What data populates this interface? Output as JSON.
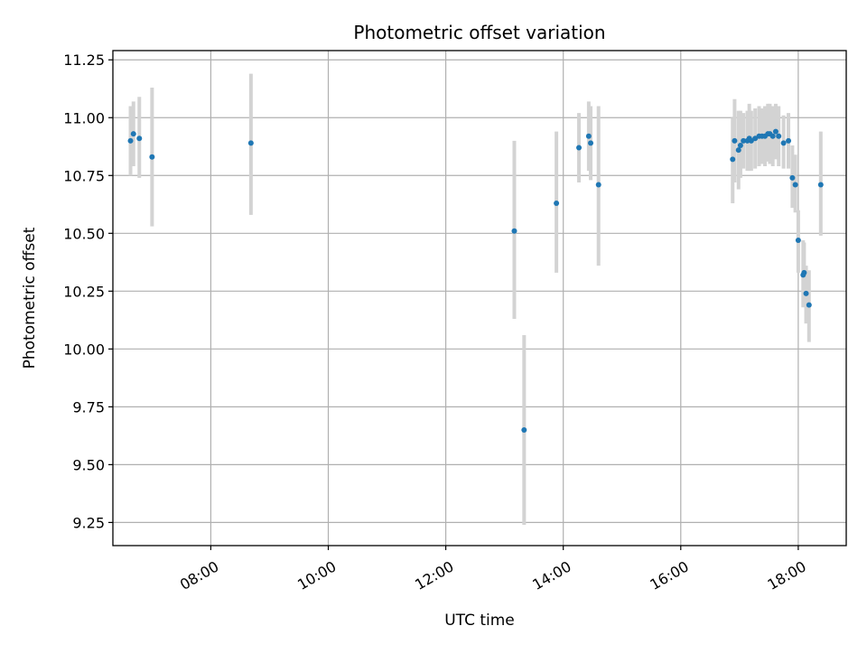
{
  "chart_data": {
    "type": "scatter",
    "title": "Photometric offset variation",
    "xlabel": "UTC time",
    "ylabel": "Photometric offset",
    "xlim": [
      "06:20",
      "18:49"
    ],
    "ylim": [
      9.15,
      11.29
    ],
    "x_ticks": [
      "08:00",
      "10:00",
      "12:00",
      "14:00",
      "16:00",
      "18:00"
    ],
    "y_ticks": [
      9.25,
      9.5,
      9.75,
      10.0,
      10.25,
      10.5,
      10.75,
      11.0,
      11.25
    ],
    "y_tick_labels": [
      "9.25",
      "9.50",
      "9.75",
      "10.00",
      "10.25",
      "10.50",
      "10.75",
      "11.00",
      "11.25"
    ],
    "grid": true,
    "point_color": "#1f77b4",
    "error_color": "#d3d3d3",
    "points": [
      {
        "t": "06:38",
        "y": 10.9,
        "lo": 10.75,
        "hi": 11.05
      },
      {
        "t": "06:41",
        "y": 10.93,
        "lo": 10.79,
        "hi": 11.07
      },
      {
        "t": "06:47",
        "y": 10.91,
        "lo": 10.74,
        "hi": 11.09
      },
      {
        "t": "07:00",
        "y": 10.83,
        "lo": 10.53,
        "hi": 11.13
      },
      {
        "t": "08:41",
        "y": 10.89,
        "lo": 10.58,
        "hi": 11.19
      },
      {
        "t": "13:10",
        "y": 10.51,
        "lo": 10.13,
        "hi": 10.9
      },
      {
        "t": "13:20",
        "y": 9.65,
        "lo": 9.24,
        "hi": 10.06
      },
      {
        "t": "13:53",
        "y": 10.63,
        "lo": 10.33,
        "hi": 10.94
      },
      {
        "t": "14:16",
        "y": 10.87,
        "lo": 10.72,
        "hi": 11.02
      },
      {
        "t": "14:26",
        "y": 10.92,
        "lo": 10.77,
        "hi": 11.07
      },
      {
        "t": "14:28",
        "y": 10.89,
        "lo": 10.73,
        "hi": 11.05
      },
      {
        "t": "14:36",
        "y": 10.71,
        "lo": 10.36,
        "hi": 11.05
      },
      {
        "t": "16:53",
        "y": 10.82,
        "lo": 10.63,
        "hi": 11.0
      },
      {
        "t": "16:55",
        "y": 10.9,
        "lo": 10.72,
        "hi": 11.08
      },
      {
        "t": "16:59",
        "y": 10.86,
        "lo": 10.69,
        "hi": 11.03
      },
      {
        "t": "17:01",
        "y": 10.88,
        "lo": 10.74,
        "hi": 11.03
      },
      {
        "t": "17:04",
        "y": 10.9,
        "lo": 10.78,
        "hi": 11.02
      },
      {
        "t": "17:08",
        "y": 10.9,
        "lo": 10.77,
        "hi": 11.03
      },
      {
        "t": "17:10",
        "y": 10.91,
        "lo": 10.77,
        "hi": 11.06
      },
      {
        "t": "17:12",
        "y": 10.9,
        "lo": 10.77,
        "hi": 11.03
      },
      {
        "t": "17:16",
        "y": 10.91,
        "lo": 10.78,
        "hi": 11.04
      },
      {
        "t": "17:20",
        "y": 10.92,
        "lo": 10.79,
        "hi": 11.05
      },
      {
        "t": "17:23",
        "y": 10.92,
        "lo": 10.8,
        "hi": 11.04
      },
      {
        "t": "17:26",
        "y": 10.92,
        "lo": 10.79,
        "hi": 11.05
      },
      {
        "t": "17:29",
        "y": 10.93,
        "lo": 10.81,
        "hi": 11.06
      },
      {
        "t": "17:31",
        "y": 10.93,
        "lo": 10.8,
        "hi": 11.06
      },
      {
        "t": "17:34",
        "y": 10.92,
        "lo": 10.79,
        "hi": 11.05
      },
      {
        "t": "17:37",
        "y": 10.94,
        "lo": 10.82,
        "hi": 11.06
      },
      {
        "t": "17:40",
        "y": 10.92,
        "lo": 10.79,
        "hi": 11.05
      },
      {
        "t": "17:45",
        "y": 10.89,
        "lo": 10.78,
        "hi": 11.01
      },
      {
        "t": "17:50",
        "y": 10.9,
        "lo": 10.78,
        "hi": 11.02
      },
      {
        "t": "17:54",
        "y": 10.74,
        "lo": 10.61,
        "hi": 10.88
      },
      {
        "t": "17:57",
        "y": 10.71,
        "lo": 10.59,
        "hi": 10.84
      },
      {
        "t": "18:00",
        "y": 10.47,
        "lo": 10.33,
        "hi": 10.6
      },
      {
        "t": "18:05",
        "y": 10.32,
        "lo": 10.18,
        "hi": 10.47
      },
      {
        "t": "18:06",
        "y": 10.33,
        "lo": 10.2,
        "hi": 10.46
      },
      {
        "t": "18:08",
        "y": 10.24,
        "lo": 10.11,
        "hi": 10.36
      },
      {
        "t": "18:11",
        "y": 10.19,
        "lo": 10.03,
        "hi": 10.34
      },
      {
        "t": "18:23",
        "y": 10.71,
        "lo": 10.49,
        "hi": 10.94
      }
    ]
  }
}
